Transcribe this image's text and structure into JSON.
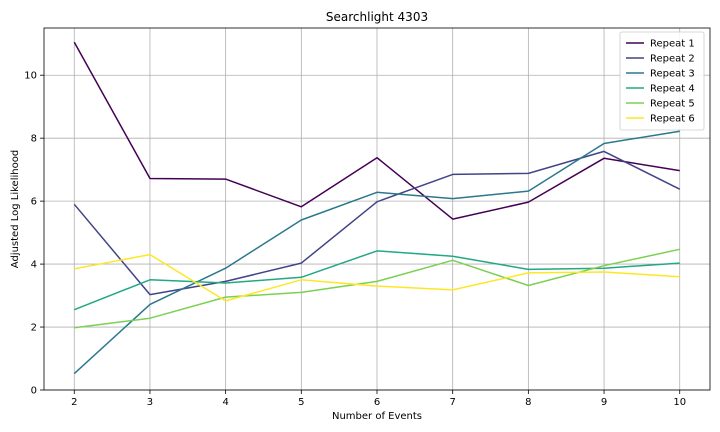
{
  "chart_data": {
    "type": "line",
    "title": "Searchlight 4303",
    "xlabel": "Number of Events",
    "ylabel": "Adjusted Log Likelihood",
    "x": [
      2,
      3,
      4,
      5,
      6,
      7,
      8,
      9,
      10
    ],
    "xticks": [
      "2",
      "3",
      "4",
      "5",
      "6",
      "7",
      "8",
      "9",
      "10"
    ],
    "yticks": [
      "0",
      "2",
      "4",
      "6",
      "8",
      "10"
    ],
    "xlim": [
      1.6,
      10.4
    ],
    "ylim": [
      0,
      11.5
    ],
    "grid": true,
    "legend_position": "top-right",
    "series": [
      {
        "name": "Repeat 1",
        "color": "#440154",
        "values": [
          11.05,
          6.72,
          6.7,
          5.82,
          7.38,
          5.43,
          5.97,
          7.36,
          6.97
        ]
      },
      {
        "name": "Repeat 2",
        "color": "#414487",
        "values": [
          5.9,
          3.03,
          3.45,
          4.03,
          5.98,
          6.85,
          6.88,
          7.58,
          6.38
        ]
      },
      {
        "name": "Repeat 3",
        "color": "#2a788e",
        "values": [
          0.52,
          2.72,
          3.87,
          5.4,
          6.28,
          6.08,
          6.32,
          7.83,
          8.22
        ]
      },
      {
        "name": "Repeat 4",
        "color": "#22a884",
        "values": [
          2.55,
          3.5,
          3.4,
          3.58,
          4.42,
          4.25,
          3.83,
          3.87,
          4.03
        ]
      },
      {
        "name": "Repeat 5",
        "color": "#7ad151",
        "values": [
          1.98,
          2.28,
          2.95,
          3.1,
          3.45,
          4.12,
          3.32,
          3.95,
          4.47
        ]
      },
      {
        "name": "Repeat 6",
        "color": "#fde725",
        "values": [
          3.85,
          4.3,
          2.83,
          3.5,
          3.3,
          3.18,
          3.72,
          3.75,
          3.6
        ]
      }
    ]
  }
}
